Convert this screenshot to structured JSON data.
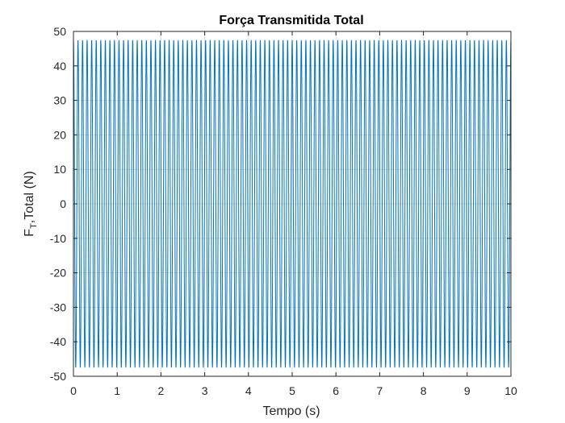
{
  "chart_data": {
    "type": "line",
    "title": "Força Transmitida Total",
    "xlabel": "Tempo (s)",
    "ylabel": {
      "main": "F",
      "subscript": "T",
      "rest": ",Total (N)"
    },
    "xlim": [
      0,
      10
    ],
    "ylim": [
      -50,
      50
    ],
    "xticks": [
      "0",
      "1",
      "2",
      "3",
      "4",
      "5",
      "6",
      "7",
      "8",
      "9",
      "10"
    ],
    "yticks": [
      "50",
      "40",
      "30",
      "20",
      "10",
      "0",
      "-10",
      "-20",
      "-30",
      "-40",
      "-50"
    ],
    "grid": true,
    "series": [
      {
        "color": "#0072bd",
        "amplitude": 47.5,
        "frequency_hz": 9.6,
        "x_start": 0,
        "x_end": 10,
        "description": "sinusoidal oscillation with constant amplitude"
      }
    ]
  }
}
